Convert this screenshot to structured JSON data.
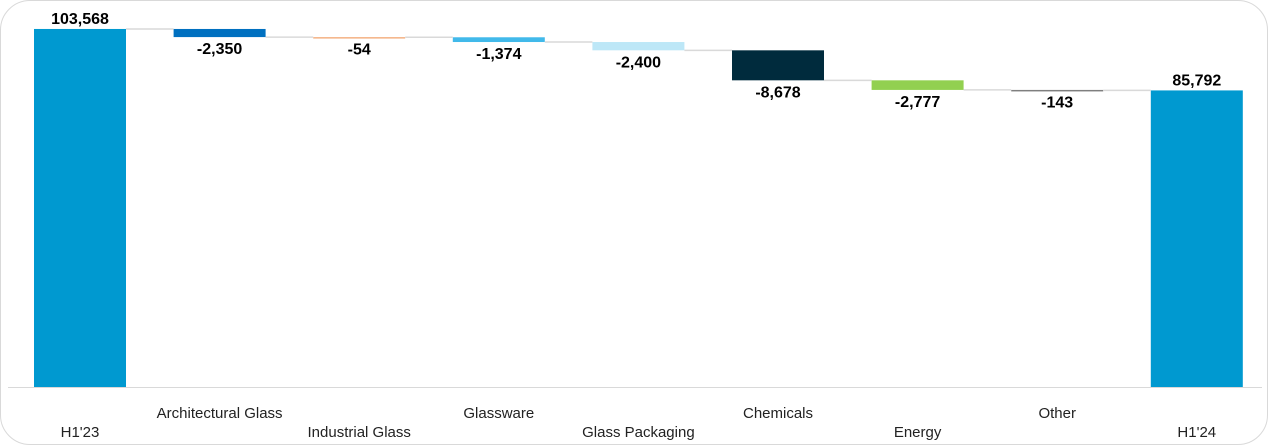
{
  "chart_data": {
    "type": "waterfall",
    "categories": [
      "H1'23",
      "Architectural Glass",
      "Industrial Glass",
      "Glassware",
      "Glass Packaging",
      "Chemicals",
      "Energy",
      "Other",
      "H1'24"
    ],
    "values": [
      103568,
      -2350,
      -54,
      -1374,
      -2400,
      -8678,
      -2777,
      -143,
      85792
    ],
    "value_labels": [
      "103,568",
      "-2,350",
      "-54",
      "-1,374",
      "-2,400",
      "-8,678",
      "-2,777",
      "-143",
      "85,792"
    ],
    "bar_kind": [
      "total",
      "delta",
      "delta",
      "delta",
      "delta",
      "delta",
      "delta",
      "delta",
      "total"
    ],
    "colors": [
      "#0099d0",
      "#0070c0",
      "#f4b183",
      "#41b9ea",
      "#bde7f7",
      "#002b3d",
      "#92d050",
      "#7f7f7f",
      "#0099d0"
    ],
    "connector_color": "#d9d9d9",
    "axis_color": "#d9d9d9",
    "grid": false,
    "legend": "none",
    "title": "",
    "xlabel": "",
    "ylabel": ""
  }
}
